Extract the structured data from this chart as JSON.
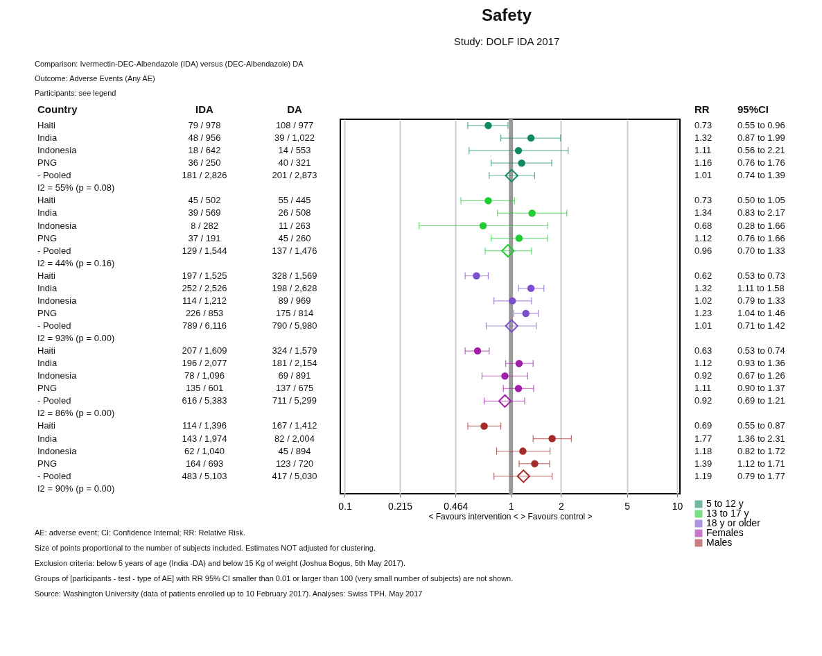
{
  "chart_data": [
    {
      "type": "other",
      "annotations": [
        "Comparison: Ivermectin-DEC-Albendazole (IDA) versus (DEC-Albendazole) DA",
        "Outcome: Adverse Events (Any AE)",
        "Participants: see legend"
      ],
      "categories": [
        "Country",
        "IDA",
        "DA"
      ],
      "cell_labels": [
        [
          "Haiti",
          "79 / 978",
          "108 / 977"
        ],
        [
          "India",
          "48 / 956",
          "39 / 1,022"
        ],
        [
          "Indonesia",
          "18 / 642",
          "14 / 553"
        ],
        [
          "PNG",
          "36 / 250",
          "40 / 321"
        ],
        [
          "- Pooled",
          "181 / 2,826",
          "201 / 2,873"
        ],
        [
          "I2 = 55% (p = 0.08)",
          null,
          null
        ],
        [
          "Haiti",
          "45 / 502",
          "55 / 445"
        ],
        [
          "India",
          "39 / 569",
          "26 / 508"
        ],
        [
          "Indonesia",
          "8 / 282",
          "11 / 263"
        ],
        [
          "PNG",
          "37 / 191",
          "45 / 260"
        ],
        [
          "- Pooled",
          "129 / 1,544",
          "137 / 1,476"
        ],
        [
          "I2 = 44% (p = 0.16)",
          null,
          null
        ],
        [
          "Haiti",
          "197 / 1,525",
          "328 / 1,569"
        ],
        [
          "India",
          "252 / 2,526",
          "198 / 2,628"
        ],
        [
          "Indonesia",
          "114 / 1,212",
          "89 / 969"
        ],
        [
          "PNG",
          "226 / 853",
          "175 / 814"
        ],
        [
          "- Pooled",
          "789 / 6,116",
          "790 / 5,980"
        ],
        [
          "I2 = 93% (p = 0.00)",
          null,
          null
        ],
        [
          "Haiti",
          "207 / 1,609",
          "324 / 1,579"
        ],
        [
          "India",
          "196 / 2,077",
          "181 / 2,154"
        ],
        [
          "Indonesia",
          "78 / 1,096",
          "69 / 891"
        ],
        [
          "PNG",
          "135 / 601",
          "137 / 675"
        ],
        [
          "- Pooled",
          "616 / 5,383",
          "711 / 5,299"
        ],
        [
          "I2 = 86% (p = 0.00)",
          null,
          null
        ],
        [
          "Haiti",
          "114 / 1,396",
          "167 / 1,412"
        ],
        [
          "India",
          "143 / 1,974",
          "82 / 2,004"
        ],
        [
          "Indonesia",
          "62 / 1,040",
          "45 / 894"
        ],
        [
          "PNG",
          "164 / 693",
          "123 / 720"
        ],
        [
          "- Pooled",
          "483 / 5,103",
          "417 / 5,030"
        ],
        [
          "I2 = 90% (p = 0.00)",
          null,
          null
        ]
      ]
    },
    {
      "type": "scatter",
      "title": "Safety",
      "subtitle": "Study: DOLF IDA 2017",
      "xlabel": "< Favours intervention < > Favours control >",
      "orientation": "horizontal",
      "log": "x",
      "categories": [
        null,
        null,
        null,
        null,
        null,
        null,
        null,
        null,
        null,
        null,
        null,
        null,
        null,
        null,
        null,
        null,
        null,
        null,
        null,
        null,
        null,
        null,
        null,
        null,
        null,
        null,
        null,
        null,
        null,
        null
      ],
      "xlim": [
        0.094,
        10.4
      ],
      "xticks": [
        0.1,
        0.215,
        0.464,
        1,
        2,
        5,
        10
      ],
      "grid": "x",
      "legend": "bottom right",
      "ref_lines": [
        {
          "axis": "x",
          "value": 1,
          "color": "#999999"
        }
      ],
      "series": [
        {
          "name": "5 to 12 y",
          "color": "#138a5e",
          "marker": "circle",
          "values": [
            0.73,
            1.32,
            1.11,
            1.16,
            null,
            null,
            null,
            null,
            null,
            null,
            null,
            null,
            null,
            null,
            null,
            null,
            null,
            null,
            null,
            null,
            null,
            null,
            null,
            null,
            null,
            null,
            null,
            null,
            null,
            null
          ],
          "errors": [
            [
              0.55,
              0.96
            ],
            [
              0.87,
              1.99
            ],
            [
              0.56,
              2.21
            ],
            [
              0.76,
              1.76
            ],
            null,
            null,
            null,
            null,
            null,
            null,
            null,
            null,
            null,
            null,
            null,
            null,
            null,
            null,
            null,
            null,
            null,
            null,
            null,
            null,
            null,
            null,
            null,
            null,
            null,
            null
          ]
        },
        {
          "color": "#138a5e",
          "marker": "diamond",
          "values": [
            null,
            null,
            null,
            null,
            1.01,
            null,
            null,
            null,
            null,
            null,
            null,
            null,
            null,
            null,
            null,
            null,
            null,
            null,
            null,
            null,
            null,
            null,
            null,
            null,
            null,
            null,
            null,
            null,
            null,
            null
          ],
          "errors": [
            null,
            null,
            null,
            null,
            [
              0.74,
              1.39
            ],
            null,
            null,
            null,
            null,
            null,
            null,
            null,
            null,
            null,
            null,
            null,
            null,
            null,
            null,
            null,
            null,
            null,
            null,
            null,
            null,
            null,
            null,
            null,
            null,
            null
          ]
        },
        {
          "name": "13 to 17 y",
          "color": "#22cc33",
          "marker": "circle",
          "values": [
            null,
            null,
            null,
            null,
            null,
            null,
            0.73,
            1.34,
            0.68,
            1.12,
            null,
            null,
            null,
            null,
            null,
            null,
            null,
            null,
            null,
            null,
            null,
            null,
            null,
            null,
            null,
            null,
            null,
            null,
            null,
            null
          ],
          "errors": [
            null,
            null,
            null,
            null,
            null,
            null,
            [
              0.5,
              1.05
            ],
            [
              0.83,
              2.17
            ],
            [
              0.28,
              1.66
            ],
            [
              0.76,
              1.66
            ],
            null,
            null,
            null,
            null,
            null,
            null,
            null,
            null,
            null,
            null,
            null,
            null,
            null,
            null,
            null,
            null,
            null,
            null,
            null,
            null
          ]
        },
        {
          "color": "#22cc33",
          "marker": "diamond",
          "values": [
            null,
            null,
            null,
            null,
            null,
            null,
            null,
            null,
            null,
            null,
            0.96,
            null,
            null,
            null,
            null,
            null,
            null,
            null,
            null,
            null,
            null,
            null,
            null,
            null,
            null,
            null,
            null,
            null,
            null,
            null
          ],
          "errors": [
            null,
            null,
            null,
            null,
            null,
            null,
            null,
            null,
            null,
            null,
            [
              0.7,
              1.33
            ],
            null,
            null,
            null,
            null,
            null,
            null,
            null,
            null,
            null,
            null,
            null,
            null,
            null,
            null,
            null,
            null,
            null,
            null,
            null
          ]
        },
        {
          "name": "18 y or older",
          "color": "#7d4fcf",
          "marker": "circle",
          "values": [
            null,
            null,
            null,
            null,
            null,
            null,
            null,
            null,
            null,
            null,
            null,
            null,
            0.62,
            1.32,
            1.02,
            1.23,
            null,
            null,
            null,
            null,
            null,
            null,
            null,
            null,
            null,
            null,
            null,
            null,
            null,
            null
          ],
          "errors": [
            null,
            null,
            null,
            null,
            null,
            null,
            null,
            null,
            null,
            null,
            null,
            null,
            [
              0.53,
              0.73
            ],
            [
              1.11,
              1.58
            ],
            [
              0.79,
              1.33
            ],
            [
              1.04,
              1.46
            ],
            null,
            null,
            null,
            null,
            null,
            null,
            null,
            null,
            null,
            null,
            null,
            null,
            null,
            null
          ]
        },
        {
          "color": "#7d4fcf",
          "marker": "diamond",
          "values": [
            null,
            null,
            null,
            null,
            null,
            null,
            null,
            null,
            null,
            null,
            null,
            null,
            null,
            null,
            null,
            null,
            1.01,
            null,
            null,
            null,
            null,
            null,
            null,
            null,
            null,
            null,
            null,
            null,
            null,
            null
          ],
          "errors": [
            null,
            null,
            null,
            null,
            null,
            null,
            null,
            null,
            null,
            null,
            null,
            null,
            null,
            null,
            null,
            null,
            [
              0.71,
              1.42
            ],
            null,
            null,
            null,
            null,
            null,
            null,
            null,
            null,
            null,
            null,
            null,
            null,
            null
          ]
        },
        {
          "name": "Females",
          "color": "#a020a8",
          "marker": "circle",
          "values": [
            null,
            null,
            null,
            null,
            null,
            null,
            null,
            null,
            null,
            null,
            null,
            null,
            null,
            null,
            null,
            null,
            null,
            null,
            0.63,
            1.12,
            0.92,
            1.11,
            null,
            null,
            null,
            null,
            null,
            null,
            null,
            null
          ],
          "errors": [
            null,
            null,
            null,
            null,
            null,
            null,
            null,
            null,
            null,
            null,
            null,
            null,
            null,
            null,
            null,
            null,
            null,
            null,
            [
              0.53,
              0.74
            ],
            [
              0.93,
              1.36
            ],
            [
              0.67,
              1.26
            ],
            [
              0.9,
              1.37
            ],
            null,
            null,
            null,
            null,
            null,
            null,
            null,
            null
          ]
        },
        {
          "color": "#a020a8",
          "marker": "diamond",
          "values": [
            null,
            null,
            null,
            null,
            null,
            null,
            null,
            null,
            null,
            null,
            null,
            null,
            null,
            null,
            null,
            null,
            null,
            null,
            null,
            null,
            null,
            null,
            0.92,
            null,
            null,
            null,
            null,
            null,
            null,
            null
          ],
          "errors": [
            null,
            null,
            null,
            null,
            null,
            null,
            null,
            null,
            null,
            null,
            null,
            null,
            null,
            null,
            null,
            null,
            null,
            null,
            null,
            null,
            null,
            null,
            [
              0.69,
              1.21
            ],
            null,
            null,
            null,
            null,
            null,
            null,
            null
          ]
        },
        {
          "name": "Males",
          "color": "#a52a2a",
          "marker": "circle",
          "values": [
            null,
            null,
            null,
            null,
            null,
            null,
            null,
            null,
            null,
            null,
            null,
            null,
            null,
            null,
            null,
            null,
            null,
            null,
            null,
            null,
            null,
            null,
            null,
            null,
            0.69,
            1.77,
            1.18,
            1.39,
            null,
            null
          ],
          "errors": [
            null,
            null,
            null,
            null,
            null,
            null,
            null,
            null,
            null,
            null,
            null,
            null,
            null,
            null,
            null,
            null,
            null,
            null,
            null,
            null,
            null,
            null,
            null,
            null,
            [
              0.55,
              0.87
            ],
            [
              1.36,
              2.31
            ],
            [
              0.82,
              1.72
            ],
            [
              1.12,
              1.71
            ],
            null,
            null
          ]
        },
        {
          "color": "#a52a2a",
          "marker": "diamond",
          "values": [
            null,
            null,
            null,
            null,
            null,
            null,
            null,
            null,
            null,
            null,
            null,
            null,
            null,
            null,
            null,
            null,
            null,
            null,
            null,
            null,
            null,
            null,
            null,
            null,
            null,
            null,
            null,
            null,
            1.19,
            null
          ],
          "errors": [
            null,
            null,
            null,
            null,
            null,
            null,
            null,
            null,
            null,
            null,
            null,
            null,
            null,
            null,
            null,
            null,
            null,
            null,
            null,
            null,
            null,
            null,
            null,
            null,
            null,
            null,
            null,
            null,
            [
              0.79,
              1.77
            ],
            null
          ]
        }
      ],
      "annotations": [
        "AE: adverse event; CI: Confidence Internal; RR: Relative Risk.",
        "Size of points proportional to the number of subjects included. Estimates NOT adjusted for clustering.",
        "Exclusion criteria: below 5 years of age (India -DA) and below 15 Kg of weight (Joshua Bogus, 5th May 2017).",
        "Groups of [participants - test - type of AE] with RR 95% CI smaller than 0.01 or larger than 100 (very small number of subjects) are not shown.",
        "Source: Washington University (data of patients enrolled up to 10 February 2017). Analyses: Swiss TPH. May 2017"
      ]
    },
    {
      "type": "other",
      "categories": [
        "RR",
        "95%CI"
      ],
      "cell_labels": [
        [
          "0.73",
          "0.55 to 0.96"
        ],
        [
          "1.32",
          "0.87 to 1.99"
        ],
        [
          "1.11",
          "0.56 to 2.21"
        ],
        [
          "1.16",
          "0.76 to 1.76"
        ],
        [
          "1.01",
          "0.74 to 1.39"
        ],
        [
          null,
          null
        ],
        [
          "0.73",
          "0.50 to 1.05"
        ],
        [
          "1.34",
          "0.83 to 2.17"
        ],
        [
          "0.68",
          "0.28 to 1.66"
        ],
        [
          "1.12",
          "0.76 to 1.66"
        ],
        [
          "0.96",
          "0.70 to 1.33"
        ],
        [
          null,
          null
        ],
        [
          "0.62",
          "0.53 to 0.73"
        ],
        [
          "1.32",
          "1.11 to 1.58"
        ],
        [
          "1.02",
          "0.79 to 1.33"
        ],
        [
          "1.23",
          "1.04 to 1.46"
        ],
        [
          "1.01",
          "0.71 to 1.42"
        ],
        [
          null,
          null
        ],
        [
          "0.63",
          "0.53 to 0.74"
        ],
        [
          "1.12",
          "0.93 to 1.36"
        ],
        [
          "0.92",
          "0.67 to 1.26"
        ],
        [
          "1.11",
          "0.90 to 1.37"
        ],
        [
          "0.92",
          "0.69 to 1.21"
        ],
        [
          null,
          null
        ],
        [
          "0.69",
          "0.55 to 0.87"
        ],
        [
          "1.77",
          "1.36 to 2.31"
        ],
        [
          "1.18",
          "0.82 to 1.72"
        ],
        [
          "1.39",
          "1.12 to 1.71"
        ],
        [
          "1.19",
          "0.79 to 1.77"
        ],
        [
          null,
          null
        ]
      ]
    }
  ]
}
